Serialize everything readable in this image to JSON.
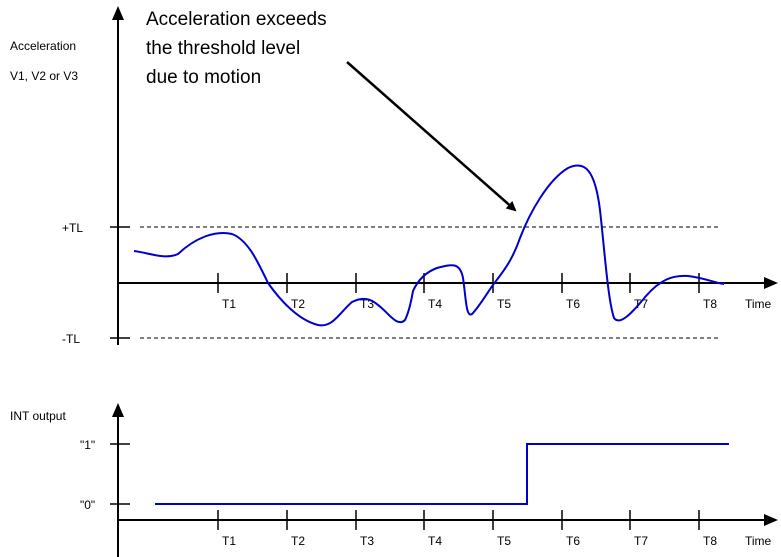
{
  "top_chart": {
    "y_label_line1": "Acceleration",
    "y_label_line2": "V1, V2 or V3",
    "plus_tl": "+TL",
    "minus_tl": "-TL",
    "x_label": "Time",
    "ticks": [
      "T1",
      "T2",
      "T3",
      "T4",
      "T5",
      "T6",
      "T7",
      "T8"
    ],
    "curve_color": "#0000cc"
  },
  "annotation": {
    "line1": "Acceleration exceeds",
    "line2": "the threshold level",
    "line3": "due to motion"
  },
  "bottom_chart": {
    "y_label": "INT output",
    "level_1": "\"1\"",
    "level_0": "\"0\"",
    "x_label": "Time",
    "ticks": [
      "T1",
      "T2",
      "T3",
      "T4",
      "T5",
      "T6",
      "T7",
      "T8"
    ],
    "signal_color": "#0000cc"
  }
}
